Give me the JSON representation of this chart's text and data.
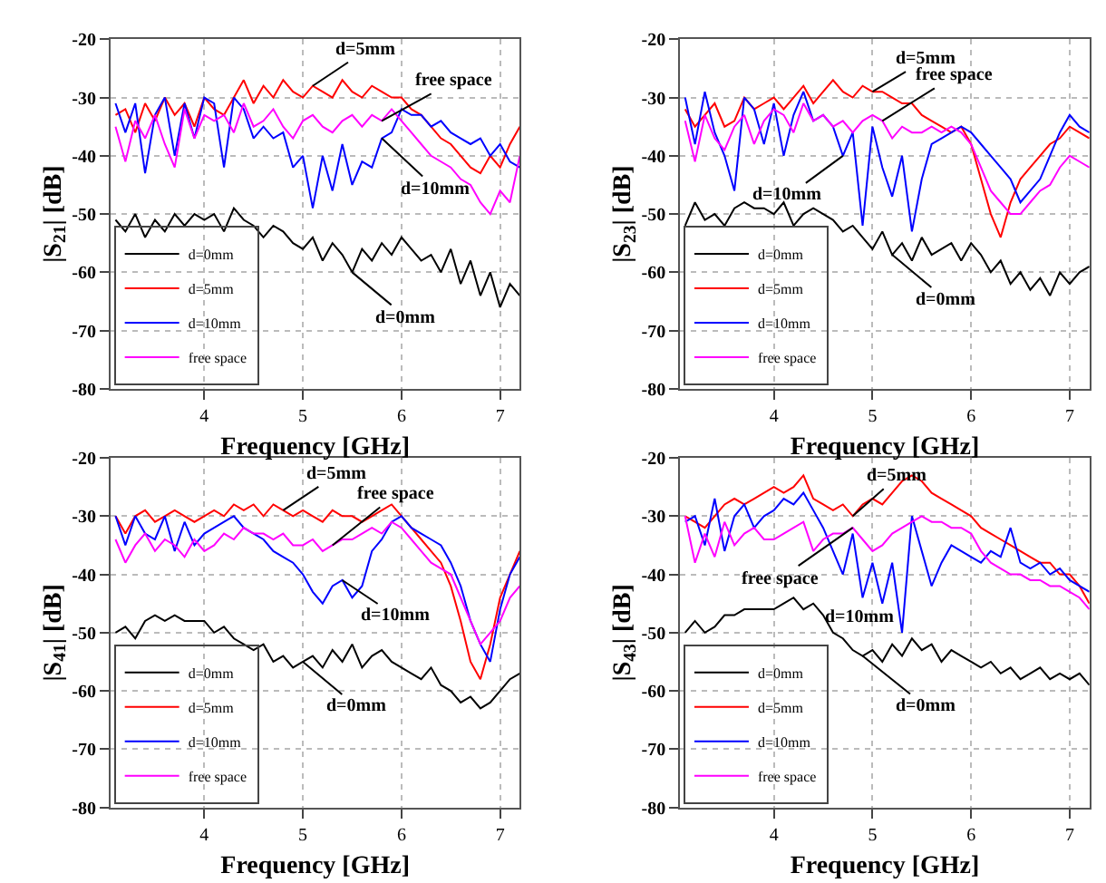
{
  "chart_data": [
    {
      "type": "line",
      "xlabel": "Frequency [GHz]",
      "ylabel": "|S$_{21}$| [dB]",
      "xlim": [
        3.05,
        7.2
      ],
      "xticks": [
        4,
        5,
        6,
        7
      ],
      "ylim": [
        -80,
        -20
      ],
      "yticks": [
        -80,
        -70,
        -60,
        -50,
        -40,
        -30,
        -20
      ],
      "grid": true,
      "legend": "bottom left",
      "x": [
        3.1,
        3.2,
        3.3,
        3.4,
        3.5,
        3.6,
        3.7,
        3.8,
        3.9,
        4.0,
        4.1,
        4.2,
        4.3,
        4.4,
        4.5,
        4.6,
        4.7,
        4.8,
        4.9,
        5.0,
        5.1,
        5.2,
        5.3,
        5.4,
        5.5,
        5.6,
        5.7,
        5.8,
        5.9,
        6.0,
        6.1,
        6.2,
        6.3,
        6.4,
        6.5,
        6.6,
        6.7,
        6.8,
        6.9,
        7.0,
        7.1,
        7.2
      ],
      "series": [
        {
          "name": "d=0mm",
          "color": "#000000",
          "values": [
            -51,
            -53,
            -50,
            -54,
            -51,
            -53,
            -50,
            -52,
            -50,
            -51,
            -50,
            -53,
            -49,
            -51,
            -52,
            -54,
            -52,
            -53,
            -55,
            -56,
            -54,
            -58,
            -55,
            -57,
            -60,
            -56,
            -58,
            -55,
            -57,
            -54,
            -56,
            -58,
            -57,
            -60,
            -56,
            -62,
            -58,
            -64,
            -60,
            -66,
            -62,
            -64
          ]
        },
        {
          "name": "d=5mm",
          "color": "#ff0000",
          "values": [
            -33,
            -32,
            -36,
            -31,
            -34,
            -30,
            -33,
            -31,
            -35,
            -30,
            -32,
            -33,
            -30,
            -27,
            -31,
            -28,
            -30,
            -27,
            -29,
            -30,
            -28,
            -29,
            -30,
            -27,
            -29,
            -30,
            -28,
            -29,
            -30,
            -30,
            -32,
            -33,
            -35,
            -37,
            -38,
            -40,
            -42,
            -43,
            -40,
            -42,
            -38,
            -35
          ]
        },
        {
          "name": "d=10mm",
          "color": "#0000ff",
          "values": [
            -31,
            -36,
            -31,
            -43,
            -33,
            -30,
            -40,
            -31,
            -37,
            -30,
            -31,
            -42,
            -30,
            -32,
            -37,
            -35,
            -37,
            -36,
            -42,
            -40,
            -49,
            -40,
            -46,
            -38,
            -45,
            -41,
            -42,
            -37,
            -36,
            -32,
            -33,
            -33,
            -35,
            -34,
            -36,
            -37,
            -38,
            -37,
            -40,
            -38,
            -41,
            -42
          ]
        },
        {
          "name": "free space",
          "color": "#ff00ff",
          "values": [
            -35,
            -41,
            -34,
            -37,
            -33,
            -38,
            -42,
            -32,
            -37,
            -33,
            -34,
            -33,
            -36,
            -31,
            -35,
            -34,
            -32,
            -35,
            -37,
            -34,
            -33,
            -35,
            -36,
            -34,
            -33,
            -35,
            -33,
            -34,
            -32,
            -34,
            -36,
            -38,
            -40,
            -41,
            -42,
            -44,
            -45,
            -48,
            -50,
            -46,
            -48,
            -40
          ]
        }
      ],
      "annotations": [
        {
          "text": "d=5mm",
          "x": 5.1,
          "y": -28
        },
        {
          "text": "free space",
          "x": 5.8,
          "y": -34
        },
        {
          "text": "d=10mm",
          "x": 5.8,
          "y": -37
        },
        {
          "text": "d=0mm",
          "x": 5.5,
          "y": -60
        }
      ]
    },
    {
      "type": "line",
      "xlabel": "Frequency [GHz]",
      "ylabel": "|S$_{23}$| [dB]",
      "xlim": [
        3.05,
        7.2
      ],
      "xticks": [
        4,
        5,
        6,
        7
      ],
      "ylim": [
        -80,
        -20
      ],
      "yticks": [
        -80,
        -70,
        -60,
        -50,
        -40,
        -30,
        -20
      ],
      "grid": true,
      "legend": "bottom left",
      "x": [
        3.1,
        3.2,
        3.3,
        3.4,
        3.5,
        3.6,
        3.7,
        3.8,
        3.9,
        4.0,
        4.1,
        4.2,
        4.3,
        4.4,
        4.5,
        4.6,
        4.7,
        4.8,
        4.9,
        5.0,
        5.1,
        5.2,
        5.3,
        5.4,
        5.5,
        5.6,
        5.7,
        5.8,
        5.9,
        6.0,
        6.1,
        6.2,
        6.3,
        6.4,
        6.5,
        6.6,
        6.7,
        6.8,
        6.9,
        7.0,
        7.1,
        7.2
      ],
      "series": [
        {
          "name": "d=0mm",
          "color": "#000000",
          "values": [
            -52,
            -48,
            -51,
            -50,
            -52,
            -49,
            -48,
            -49,
            -49,
            -50,
            -48,
            -52,
            -50,
            -49,
            -50,
            -51,
            -53,
            -52,
            -54,
            -56,
            -53,
            -57,
            -55,
            -58,
            -54,
            -57,
            -56,
            -55,
            -58,
            -55,
            -57,
            -60,
            -58,
            -62,
            -60,
            -63,
            -61,
            -64,
            -60,
            -62,
            -60,
            -59
          ]
        },
        {
          "name": "d=5mm",
          "color": "#ff0000",
          "values": [
            -32,
            -35,
            -33,
            -31,
            -35,
            -34,
            -30,
            -32,
            -31,
            -30,
            -32,
            -30,
            -28,
            -31,
            -29,
            -27,
            -29,
            -30,
            -28,
            -29,
            -29,
            -30,
            -31,
            -31,
            -33,
            -34,
            -35,
            -36,
            -35,
            -38,
            -44,
            -50,
            -54,
            -48,
            -44,
            -42,
            -40,
            -38,
            -37,
            -35,
            -36,
            -37
          ]
        },
        {
          "name": "d=10mm",
          "color": "#0000ff",
          "values": [
            -30,
            -38,
            -29,
            -36,
            -40,
            -46,
            -30,
            -32,
            -38,
            -31,
            -40,
            -33,
            -29,
            -34,
            -33,
            -35,
            -40,
            -36,
            -52,
            -35,
            -42,
            -47,
            -40,
            -53,
            -44,
            -38,
            -37,
            -36,
            -35,
            -36,
            -38,
            -40,
            -42,
            -44,
            -48,
            -46,
            -44,
            -40,
            -36,
            -33,
            -35,
            -36
          ]
        },
        {
          "name": "free space",
          "color": "#ff00ff",
          "values": [
            -34,
            -41,
            -33,
            -37,
            -39,
            -35,
            -33,
            -38,
            -34,
            -32,
            -33,
            -36,
            -31,
            -34,
            -33,
            -35,
            -34,
            -36,
            -34,
            -33,
            -34,
            -37,
            -35,
            -36,
            -36,
            -35,
            -36,
            -35,
            -36,
            -38,
            -42,
            -46,
            -48,
            -50,
            -50,
            -48,
            -46,
            -45,
            -42,
            -40,
            -41,
            -42
          ]
        }
      ],
      "annotations": [
        {
          "text": "d=5mm",
          "x": 5.0,
          "y": -29
        },
        {
          "text": "free space",
          "x": 5.1,
          "y": -34
        },
        {
          "text": "d=10mm",
          "x": 4.7,
          "y": -40
        },
        {
          "text": "d=0mm",
          "x": 5.2,
          "y": -57
        }
      ]
    },
    {
      "type": "line",
      "xlabel": "Frequency [GHz]",
      "ylabel": "|S$_{41}$| [dB]",
      "xlim": [
        3.05,
        7.2
      ],
      "xticks": [
        4,
        5,
        6,
        7
      ],
      "ylim": [
        -80,
        -20
      ],
      "yticks": [
        -80,
        -70,
        -60,
        -50,
        -40,
        -30,
        -20
      ],
      "grid": true,
      "legend": "bottom left",
      "x": [
        3.1,
        3.2,
        3.3,
        3.4,
        3.5,
        3.6,
        3.7,
        3.8,
        3.9,
        4.0,
        4.1,
        4.2,
        4.3,
        4.4,
        4.5,
        4.6,
        4.7,
        4.8,
        4.9,
        5.0,
        5.1,
        5.2,
        5.3,
        5.4,
        5.5,
        5.6,
        5.7,
        5.8,
        5.9,
        6.0,
        6.1,
        6.2,
        6.3,
        6.4,
        6.5,
        6.6,
        6.7,
        6.8,
        6.9,
        7.0,
        7.1,
        7.2
      ],
      "series": [
        {
          "name": "d=0mm",
          "color": "#000000",
          "values": [
            -50,
            -49,
            -51,
            -48,
            -47,
            -48,
            -47,
            -48,
            -48,
            -48,
            -50,
            -49,
            -51,
            -52,
            -53,
            -52,
            -55,
            -54,
            -56,
            -55,
            -54,
            -56,
            -53,
            -55,
            -52,
            -56,
            -54,
            -53,
            -55,
            -56,
            -57,
            -58,
            -56,
            -59,
            -60,
            -62,
            -61,
            -63,
            -62,
            -60,
            -58,
            -57
          ]
        },
        {
          "name": "d=5mm",
          "color": "#ff0000",
          "values": [
            -30,
            -33,
            -30,
            -29,
            -31,
            -30,
            -29,
            -30,
            -31,
            -30,
            -29,
            -30,
            -28,
            -29,
            -28,
            -30,
            -28,
            -29,
            -30,
            -29,
            -30,
            -31,
            -29,
            -30,
            -30,
            -31,
            -30,
            -29,
            -28,
            -30,
            -32,
            -34,
            -36,
            -38,
            -42,
            -48,
            -55,
            -58,
            -52,
            -44,
            -40,
            -36
          ]
        },
        {
          "name": "d=10mm",
          "color": "#0000ff",
          "values": [
            -30,
            -35,
            -30,
            -33,
            -34,
            -30,
            -36,
            -31,
            -35,
            -33,
            -32,
            -31,
            -30,
            -32,
            -33,
            -34,
            -36,
            -37,
            -38,
            -40,
            -43,
            -45,
            -42,
            -41,
            -44,
            -42,
            -36,
            -34,
            -31,
            -30,
            -32,
            -33,
            -34,
            -35,
            -38,
            -42,
            -48,
            -52,
            -55,
            -46,
            -40,
            -37
          ]
        },
        {
          "name": "free space",
          "color": "#ff00ff",
          "values": [
            -34,
            -38,
            -35,
            -33,
            -36,
            -34,
            -35,
            -37,
            -34,
            -36,
            -35,
            -33,
            -34,
            -32,
            -33,
            -33,
            -34,
            -33,
            -35,
            -35,
            -34,
            -36,
            -35,
            -34,
            -34,
            -33,
            -32,
            -33,
            -31,
            -32,
            -34,
            -36,
            -38,
            -39,
            -40,
            -44,
            -48,
            -52,
            -50,
            -48,
            -44,
            -42
          ]
        }
      ],
      "annotations": [
        {
          "text": "d=5mm",
          "x": 4.8,
          "y": -29
        },
        {
          "text": "free space",
          "x": 5.3,
          "y": -35
        },
        {
          "text": "d=10mm",
          "x": 5.4,
          "y": -41
        },
        {
          "text": "d=0mm",
          "x": 5.0,
          "y": -55
        }
      ]
    },
    {
      "type": "line",
      "xlabel": "Frequency [GHz]",
      "ylabel": "|S$_{43}$| [dB]",
      "xlim": [
        3.05,
        7.2
      ],
      "xticks": [
        4,
        5,
        6,
        7
      ],
      "ylim": [
        -80,
        -20
      ],
      "yticks": [
        -80,
        -70,
        -60,
        -50,
        -40,
        -30,
        -20
      ],
      "grid": true,
      "legend": "bottom left",
      "x": [
        3.1,
        3.2,
        3.3,
        3.4,
        3.5,
        3.6,
        3.7,
        3.8,
        3.9,
        4.0,
        4.1,
        4.2,
        4.3,
        4.4,
        4.5,
        4.6,
        4.7,
        4.8,
        4.9,
        5.0,
        5.1,
        5.2,
        5.3,
        5.4,
        5.5,
        5.6,
        5.7,
        5.8,
        5.9,
        6.0,
        6.1,
        6.2,
        6.3,
        6.4,
        6.5,
        6.6,
        6.7,
        6.8,
        6.9,
        7.0,
        7.1,
        7.2
      ],
      "series": [
        {
          "name": "d=0mm",
          "color": "#000000",
          "values": [
            -50,
            -48,
            -50,
            -49,
            -47,
            -47,
            -46,
            -46,
            -46,
            -46,
            -45,
            -44,
            -46,
            -45,
            -47,
            -50,
            -51,
            -53,
            -54,
            -53,
            -55,
            -52,
            -54,
            -51,
            -53,
            -52,
            -55,
            -53,
            -54,
            -55,
            -56,
            -55,
            -57,
            -56,
            -58,
            -57,
            -56,
            -58,
            -57,
            -58,
            -57,
            -59
          ]
        },
        {
          "name": "d=5mm",
          "color": "#ff0000",
          "values": [
            -30,
            -31,
            -32,
            -30,
            -28,
            -27,
            -28,
            -27,
            -26,
            -25,
            -26,
            -25,
            -23,
            -27,
            -28,
            -29,
            -28,
            -30,
            -28,
            -27,
            -28,
            -26,
            -24,
            -23,
            -24,
            -26,
            -27,
            -28,
            -29,
            -30,
            -32,
            -33,
            -34,
            -35,
            -36,
            -37,
            -38,
            -38,
            -40,
            -40,
            -42,
            -45
          ]
        },
        {
          "name": "d=10mm",
          "color": "#0000ff",
          "values": [
            -31,
            -30,
            -35,
            -27,
            -36,
            -30,
            -28,
            -32,
            -30,
            -29,
            -27,
            -28,
            -26,
            -29,
            -32,
            -36,
            -40,
            -33,
            -44,
            -38,
            -45,
            -38,
            -50,
            -30,
            -36,
            -42,
            -38,
            -35,
            -36,
            -37,
            -38,
            -36,
            -37,
            -32,
            -38,
            -39,
            -38,
            -40,
            -39,
            -41,
            -42,
            -43
          ]
        },
        {
          "name": "free space",
          "color": "#ff00ff",
          "values": [
            -30,
            -38,
            -33,
            -37,
            -31,
            -35,
            -33,
            -32,
            -34,
            -34,
            -33,
            -32,
            -31,
            -36,
            -34,
            -33,
            -33,
            -32,
            -34,
            -36,
            -35,
            -33,
            -32,
            -31,
            -30,
            -31,
            -31,
            -32,
            -32,
            -33,
            -36,
            -38,
            -39,
            -40,
            -40,
            -41,
            -41,
            -42,
            -42,
            -43,
            -44,
            -46
          ]
        }
      ],
      "annotations": [
        {
          "text": "d=5mm",
          "x": 4.8,
          "y": -30
        },
        {
          "text": "free space",
          "x": 4.8,
          "y": -32
        },
        {
          "text": "d=10mm",
          "x": 4.7,
          "y": -40
        },
        {
          "text": "d=0mm",
          "x": 4.9,
          "y": -54
        }
      ]
    }
  ]
}
